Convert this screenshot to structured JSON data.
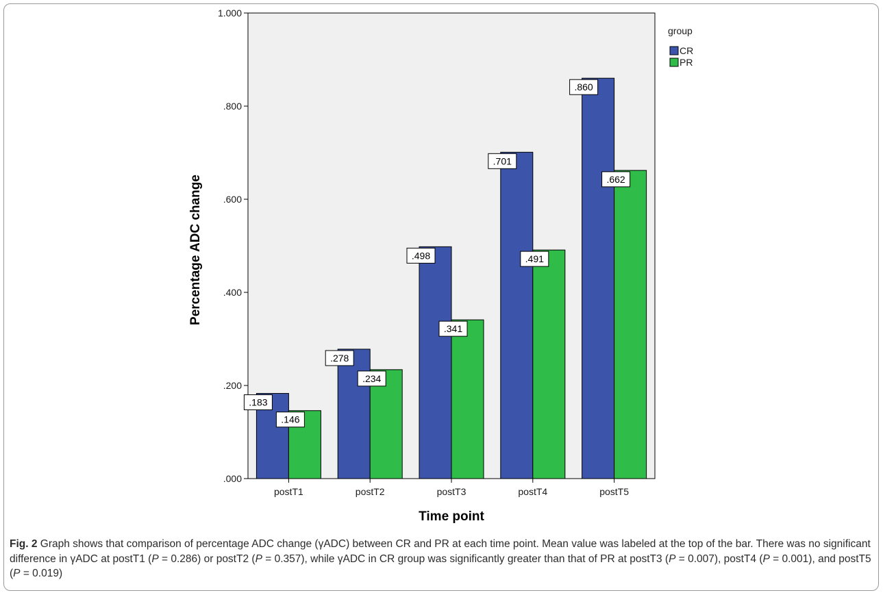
{
  "chart_data": {
    "type": "bar",
    "xlabel": "Time point",
    "ylabel": "Percentage ADC change",
    "ylim": [
      0,
      1.0
    ],
    "yticks": [
      0,
      0.2,
      0.4,
      0.6,
      0.8,
      1.0
    ],
    "ytick_labels": [
      ".000",
      ".200",
      ".400",
      ".600",
      ".800",
      "1.000"
    ],
    "categories": [
      "postT1",
      "postT2",
      "postT3",
      "postT4",
      "postT5"
    ],
    "series": [
      {
        "name": "CR",
        "color": "#3c55ab",
        "values": [
          0.183,
          0.278,
          0.498,
          0.701,
          0.86
        ],
        "value_labels": [
          ".183",
          ".278",
          ".498",
          ".701",
          ".860"
        ]
      },
      {
        "name": "PR",
        "color": "#2fbc48",
        "values": [
          0.146,
          0.234,
          0.341,
          0.491,
          0.662
        ],
        "value_labels": [
          ".146",
          ".234",
          ".341",
          ".491",
          ".662"
        ]
      }
    ],
    "legend": {
      "title": "group",
      "placement": "outside-top-right"
    },
    "plot_background": "#f0f0f0",
    "grid": false
  },
  "caption": {
    "label": "Fig. 2",
    "parts": [
      {
        "text": " Graph shows that comparison of percentage ADC change (γADC) between CR and PR at each time point. Mean value was labeled at the top of the bar. There was no significant difference in γADC at postT1 (",
        "italic": false
      },
      {
        "text": "P",
        "italic": true
      },
      {
        "text": " = 0.286) or postT2 (",
        "italic": false
      },
      {
        "text": "P",
        "italic": true
      },
      {
        "text": " = 0.357), while γADC in CR group was significantly greater than that of PR at postT3 (",
        "italic": false
      },
      {
        "text": "P",
        "italic": true
      },
      {
        "text": " = 0.007), postT4 (",
        "italic": false
      },
      {
        "text": "P",
        "italic": true
      },
      {
        "text": " = 0.001), and postT5 (",
        "italic": false
      },
      {
        "text": "P",
        "italic": true
      },
      {
        "text": " = 0.019)",
        "italic": false
      }
    ]
  }
}
